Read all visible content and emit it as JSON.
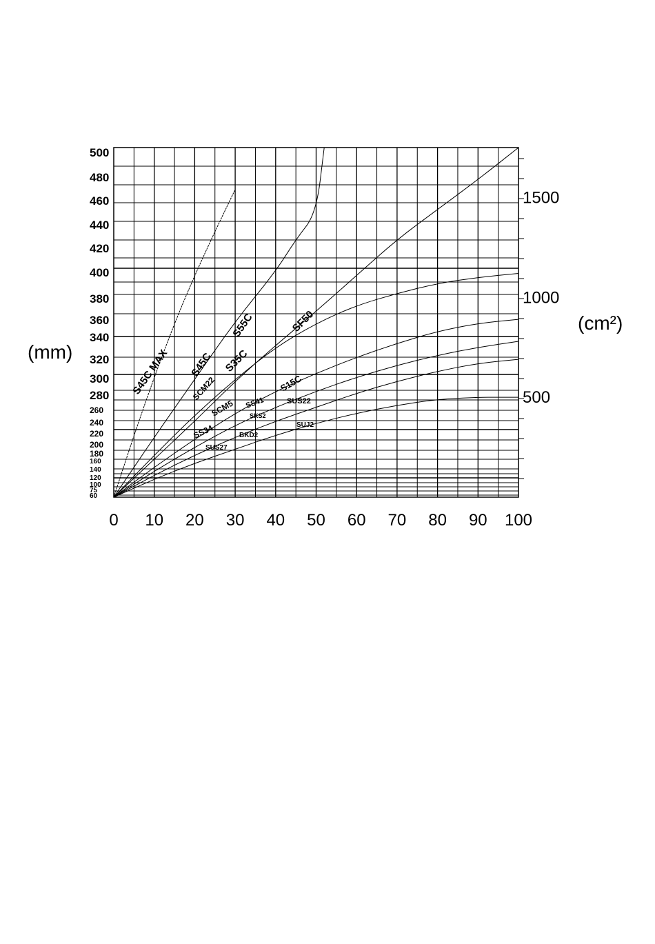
{
  "chart_data": {
    "type": "line",
    "title": "",
    "xlabel": "",
    "ylabel": "(mm)",
    "y2label": "(cm²)",
    "xlim": [
      0,
      100
    ],
    "ylim": [
      60,
      500
    ],
    "y2lim": [
      0,
      1750
    ],
    "grid": true,
    "legend": "none",
    "x_ticks": [
      0,
      10,
      20,
      30,
      40,
      50,
      60,
      70,
      80,
      90,
      100
    ],
    "y_ticks": [
      60,
      75,
      100,
      120,
      140,
      160,
      180,
      200,
      220,
      240,
      260,
      280,
      300,
      320,
      340,
      360,
      380,
      400,
      420,
      440,
      460,
      480,
      500
    ],
    "y_tick_labels": [
      "60",
      "75",
      "100",
      "120",
      "140",
      "160",
      "180",
      "200",
      "220",
      "240",
      "260",
      "280",
      "300",
      "320",
      "340",
      "360",
      "380",
      "400",
      "420",
      "440",
      "460",
      "480",
      "500"
    ],
    "y2_ticks": [
      500,
      1000,
      1500
    ],
    "curve_labels": [
      "S45C MAX",
      "S55C",
      "SF50",
      "S45C",
      "SCM22",
      "S35C",
      "S15C",
      "SS41",
      "SCM5",
      "SUS22",
      "SKS2",
      "SS34",
      "SUJ2",
      "BKD2",
      "SUS27"
    ],
    "series": [
      {
        "x": [
          0,
          5,
          10,
          15,
          20,
          25,
          30
        ],
        "y2": [
          0,
          310,
          600,
          870,
          1110,
          1330,
          1540
        ]
      },
      {
        "x": [
          0,
          10,
          20,
          30,
          40,
          45,
          50,
          52
        ],
        "y2": [
          0,
          300,
          590,
          880,
          1130,
          1290,
          1420,
          1750
        ]
      },
      {
        "x": [
          0,
          10,
          20,
          30,
          40,
          50,
          60,
          70,
          80,
          90,
          100
        ],
        "y2": [
          0,
          190,
          380,
          580,
          760,
          930,
          1110,
          1290,
          1440,
          1590,
          1750
        ]
      },
      {
        "x": [
          0,
          10,
          20,
          30,
          40,
          50,
          60,
          70,
          80,
          90,
          100
        ],
        "y2": [
          0,
          210,
          410,
          590,
          750,
          870,
          960,
          1020,
          1070,
          1100,
          1120
        ]
      },
      {
        "x": [
          0,
          10,
          20,
          30,
          40,
          50,
          60,
          70,
          80,
          90,
          100
        ],
        "y2": [
          0,
          150,
          290,
          420,
          530,
          620,
          700,
          770,
          830,
          870,
          890
        ]
      },
      {
        "x": [
          0,
          10,
          20,
          30,
          40,
          50,
          60,
          70,
          80,
          90,
          100
        ],
        "y2": [
          0,
          130,
          250,
          360,
          450,
          530,
          600,
          660,
          710,
          750,
          780
        ]
      },
      {
        "x": [
          0,
          10,
          20,
          30,
          40,
          50,
          60,
          70,
          80,
          90,
          100
        ],
        "y2": [
          0,
          110,
          210,
          300,
          380,
          450,
          520,
          580,
          630,
          670,
          690
        ]
      },
      {
        "x": [
          0,
          10,
          20,
          30,
          40,
          50,
          60,
          70,
          80,
          90,
          95,
          100
        ],
        "y2": [
          0,
          90,
          170,
          240,
          310,
          370,
          420,
          460,
          490,
          500,
          500,
          500
        ]
      }
    ]
  }
}
